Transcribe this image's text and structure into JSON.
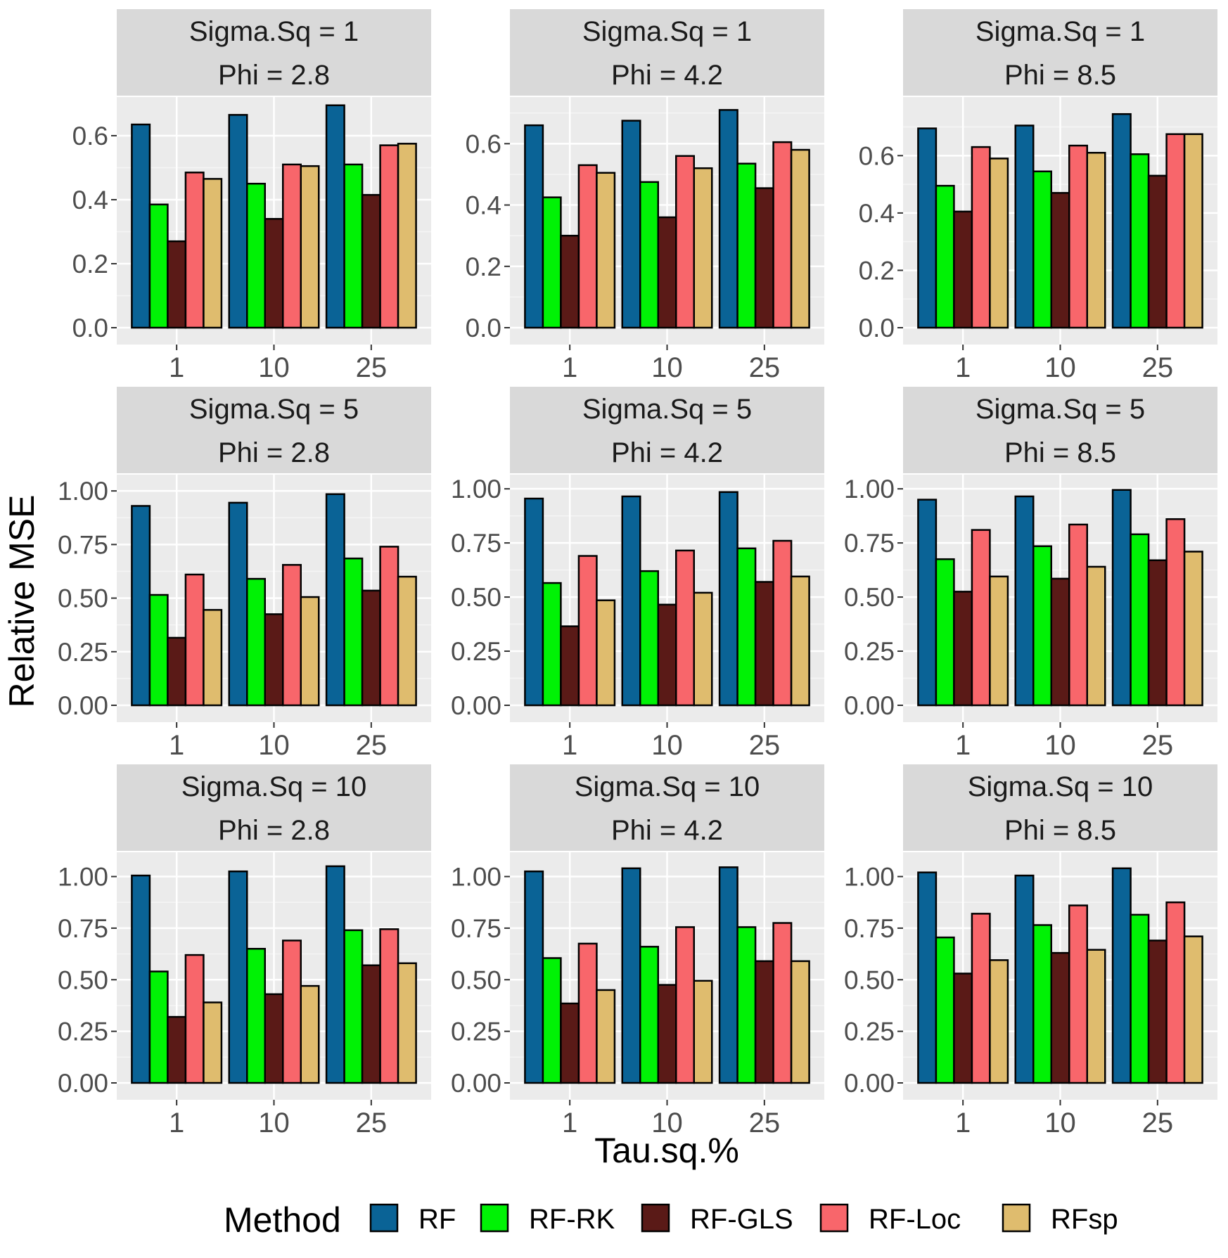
{
  "chart_data": {
    "type": "bar",
    "layout": "facet-grid-3x3",
    "xlabel": "Tau.sq.%",
    "ylabel": "Relative MSE",
    "legend": {
      "title": "Method",
      "position": "bottom",
      "entries": [
        {
          "name": "RF",
          "color": "#0A6396"
        },
        {
          "name": "RF-RK",
          "color": "#00F205"
        },
        {
          "name": "RF-GLS",
          "color": "#5A1A17"
        },
        {
          "name": "RF-Loc",
          "color": "#F8666B"
        },
        {
          "name": "RFsp",
          "color": "#DFBC6E"
        }
      ]
    },
    "categories": [
      "1",
      "10",
      "25"
    ],
    "series_names": [
      "RF",
      "RF-RK",
      "RF-GLS",
      "RF-Loc",
      "RFsp"
    ],
    "panels": [
      {
        "strip1": "Sigma.Sq = 1",
        "strip2": "Phi = 2.8",
        "ylim": [
          0,
          0.69
        ],
        "ticks": [
          0.0,
          0.2,
          0.4,
          0.6
        ],
        "tick_labels": [
          "0.0",
          "0.2",
          "0.4",
          "0.6"
        ],
        "values": [
          [
            0.635,
            0.385,
            0.27,
            0.485,
            0.465
          ],
          [
            0.665,
            0.45,
            0.34,
            0.51,
            0.505
          ],
          [
            0.695,
            0.51,
            0.415,
            0.57,
            0.575
          ]
        ]
      },
      {
        "strip1": "Sigma.Sq = 1",
        "strip2": "Phi = 4.2",
        "ylim": [
          0,
          0.72
        ],
        "ticks": [
          0.0,
          0.2,
          0.4,
          0.6
        ],
        "tick_labels": [
          "0.0",
          "0.2",
          "0.4",
          "0.6"
        ],
        "values": [
          [
            0.66,
            0.425,
            0.3,
            0.53,
            0.505
          ],
          [
            0.675,
            0.475,
            0.36,
            0.56,
            0.52
          ],
          [
            0.71,
            0.535,
            0.455,
            0.605,
            0.58
          ]
        ]
      },
      {
        "strip1": "Sigma.Sq = 1",
        "strip2": "Phi = 8.5",
        "ylim": [
          0,
          0.77
        ],
        "ticks": [
          0.0,
          0.2,
          0.4,
          0.6
        ],
        "tick_labels": [
          "0.0",
          "0.2",
          "0.4",
          "0.6"
        ],
        "values": [
          [
            0.695,
            0.495,
            0.405,
            0.63,
            0.59
          ],
          [
            0.705,
            0.545,
            0.47,
            0.635,
            0.61
          ],
          [
            0.745,
            0.605,
            0.53,
            0.675,
            0.675
          ]
        ]
      },
      {
        "strip1": "Sigma.Sq = 5",
        "strip2": "Phi = 2.8",
        "ylim": [
          0,
          1.03
        ],
        "ticks": [
          0.0,
          0.25,
          0.5,
          0.75,
          1.0
        ],
        "tick_labels": [
          "0.00",
          "0.25",
          "0.50",
          "0.75",
          "1.00"
        ],
        "values": [
          [
            0.93,
            0.515,
            0.315,
            0.61,
            0.445
          ],
          [
            0.945,
            0.59,
            0.425,
            0.655,
            0.505
          ],
          [
            0.985,
            0.685,
            0.535,
            0.74,
            0.6
          ]
        ]
      },
      {
        "strip1": "Sigma.Sq = 5",
        "strip2": "Phi = 4.2",
        "ylim": [
          0,
          1.02
        ],
        "ticks": [
          0.0,
          0.25,
          0.5,
          0.75,
          1.0
        ],
        "tick_labels": [
          "0.00",
          "0.25",
          "0.50",
          "0.75",
          "1.00"
        ],
        "values": [
          [
            0.955,
            0.565,
            0.365,
            0.69,
            0.485
          ],
          [
            0.965,
            0.62,
            0.465,
            0.715,
            0.52
          ],
          [
            0.985,
            0.725,
            0.57,
            0.76,
            0.595
          ]
        ]
      },
      {
        "strip1": "Sigma.Sq = 5",
        "strip2": "Phi = 8.5",
        "ylim": [
          0,
          1.02
        ],
        "ticks": [
          0.0,
          0.25,
          0.5,
          0.75,
          1.0
        ],
        "tick_labels": [
          "0.00",
          "0.25",
          "0.50",
          "0.75",
          "1.00"
        ],
        "values": [
          [
            0.95,
            0.675,
            0.525,
            0.81,
            0.595
          ],
          [
            0.965,
            0.735,
            0.585,
            0.835,
            0.64
          ],
          [
            0.995,
            0.79,
            0.67,
            0.86,
            0.71
          ]
        ]
      },
      {
        "strip1": "Sigma.Sq = 10",
        "strip2": "Phi = 2.8",
        "ylim": [
          0,
          1.07
        ],
        "ticks": [
          0.0,
          0.25,
          0.5,
          0.75,
          1.0
        ],
        "tick_labels": [
          "0.00",
          "0.25",
          "0.50",
          "0.75",
          "1.00"
        ],
        "values": [
          [
            1.005,
            0.54,
            0.32,
            0.62,
            0.39
          ],
          [
            1.025,
            0.65,
            0.43,
            0.69,
            0.47
          ],
          [
            1.05,
            0.74,
            0.57,
            0.745,
            0.58
          ]
        ]
      },
      {
        "strip1": "Sigma.Sq = 10",
        "strip2": "Phi = 4.2",
        "ylim": [
          0,
          1.07
        ],
        "ticks": [
          0.0,
          0.25,
          0.5,
          0.75,
          1.0
        ],
        "tick_labels": [
          "0.00",
          "0.25",
          "0.50",
          "0.75",
          "1.00"
        ],
        "values": [
          [
            1.025,
            0.605,
            0.385,
            0.675,
            0.45
          ],
          [
            1.04,
            0.66,
            0.475,
            0.755,
            0.495
          ],
          [
            1.045,
            0.755,
            0.59,
            0.775,
            0.59
          ]
        ]
      },
      {
        "strip1": "Sigma.Sq = 10",
        "strip2": "Phi = 8.5",
        "ylim": [
          0,
          1.07
        ],
        "ticks": [
          0.0,
          0.25,
          0.5,
          0.75,
          1.0
        ],
        "tick_labels": [
          "0.00",
          "0.25",
          "0.50",
          "0.75",
          "1.00"
        ],
        "values": [
          [
            1.02,
            0.705,
            0.53,
            0.82,
            0.595
          ],
          [
            1.005,
            0.765,
            0.63,
            0.86,
            0.645
          ],
          [
            1.04,
            0.815,
            0.69,
            0.875,
            0.71
          ]
        ]
      }
    ]
  }
}
